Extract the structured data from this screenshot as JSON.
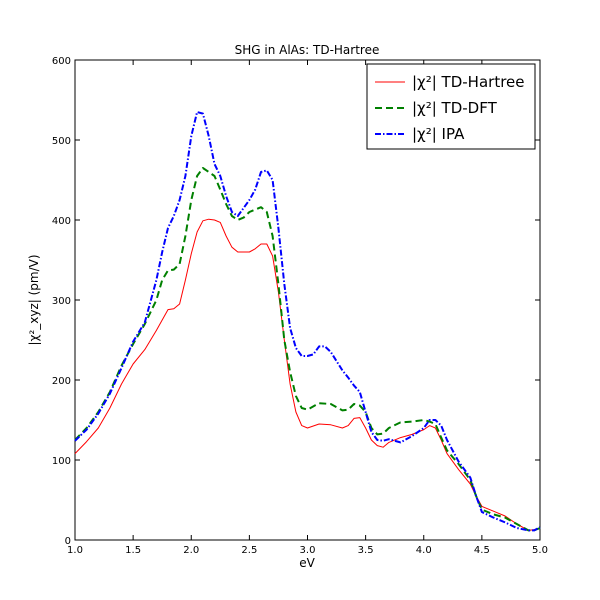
{
  "chart_data": {
    "type": "line",
    "title": "SHG in AlAs: TD-Hartree",
    "xlabel": "eV",
    "ylabel": "|χ²_xyz| (pm/V)",
    "xlim": [
      1.0,
      5.0
    ],
    "ylim": [
      0,
      600
    ],
    "x_ticks": [
      "1.0",
      "1.5",
      "2.0",
      "2.5",
      "3.0",
      "3.5",
      "4.0",
      "4.5",
      "5.0"
    ],
    "y_ticks": [
      "0",
      "100",
      "200",
      "300",
      "400",
      "500",
      "600"
    ],
    "grid": false,
    "legend_position": "top-right",
    "series": [
      {
        "name": "|χ²| TD-Hartree",
        "color": "#ff0000",
        "style": "solid",
        "points": [
          [
            1.0,
            108
          ],
          [
            1.1,
            123
          ],
          [
            1.2,
            140
          ],
          [
            1.3,
            165
          ],
          [
            1.4,
            195
          ],
          [
            1.5,
            220
          ],
          [
            1.6,
            238
          ],
          [
            1.7,
            262
          ],
          [
            1.8,
            288
          ],
          [
            1.85,
            289
          ],
          [
            1.9,
            295
          ],
          [
            1.95,
            325
          ],
          [
            2.0,
            358
          ],
          [
            2.05,
            385
          ],
          [
            2.1,
            399
          ],
          [
            2.15,
            401
          ],
          [
            2.2,
            400
          ],
          [
            2.25,
            397
          ],
          [
            2.3,
            380
          ],
          [
            2.35,
            366
          ],
          [
            2.4,
            360
          ],
          [
            2.5,
            360
          ],
          [
            2.55,
            364
          ],
          [
            2.6,
            370
          ],
          [
            2.65,
            370
          ],
          [
            2.7,
            355
          ],
          [
            2.75,
            310
          ],
          [
            2.8,
            250
          ],
          [
            2.85,
            195
          ],
          [
            2.9,
            160
          ],
          [
            2.95,
            143
          ],
          [
            3.0,
            140
          ],
          [
            3.1,
            145
          ],
          [
            3.2,
            144
          ],
          [
            3.3,
            140
          ],
          [
            3.35,
            143
          ],
          [
            3.4,
            152
          ],
          [
            3.45,
            153
          ],
          [
            3.5,
            140
          ],
          [
            3.55,
            125
          ],
          [
            3.6,
            118
          ],
          [
            3.65,
            116
          ],
          [
            3.7,
            122
          ],
          [
            3.8,
            128
          ],
          [
            3.9,
            132
          ],
          [
            4.0,
            138
          ],
          [
            4.05,
            143
          ],
          [
            4.1,
            140
          ],
          [
            4.15,
            125
          ],
          [
            4.2,
            108
          ],
          [
            4.3,
            88
          ],
          [
            4.4,
            70
          ],
          [
            4.45,
            55
          ],
          [
            4.5,
            42
          ],
          [
            4.6,
            36
          ],
          [
            4.7,
            30
          ],
          [
            4.8,
            20
          ],
          [
            4.9,
            12
          ],
          [
            4.95,
            13
          ],
          [
            5.0,
            15
          ]
        ]
      },
      {
        "name": "|χ²| TD-DFT",
        "color": "#008000",
        "style": "dashed",
        "points": [
          [
            1.0,
            125
          ],
          [
            1.1,
            140
          ],
          [
            1.2,
            160
          ],
          [
            1.3,
            185
          ],
          [
            1.4,
            218
          ],
          [
            1.5,
            245
          ],
          [
            1.6,
            270
          ],
          [
            1.7,
            300
          ],
          [
            1.75,
            325
          ],
          [
            1.8,
            337
          ],
          [
            1.85,
            338
          ],
          [
            1.9,
            345
          ],
          [
            1.95,
            380
          ],
          [
            2.0,
            425
          ],
          [
            2.05,
            455
          ],
          [
            2.1,
            465
          ],
          [
            2.15,
            460
          ],
          [
            2.2,
            455
          ],
          [
            2.25,
            438
          ],
          [
            2.3,
            420
          ],
          [
            2.35,
            405
          ],
          [
            2.4,
            400
          ],
          [
            2.45,
            403
          ],
          [
            2.5,
            410
          ],
          [
            2.55,
            413
          ],
          [
            2.6,
            416
          ],
          [
            2.65,
            410
          ],
          [
            2.7,
            380
          ],
          [
            2.75,
            320
          ],
          [
            2.8,
            250
          ],
          [
            2.85,
            210
          ],
          [
            2.9,
            180
          ],
          [
            2.95,
            165
          ],
          [
            3.0,
            163
          ],
          [
            3.1,
            171
          ],
          [
            3.2,
            170
          ],
          [
            3.3,
            162
          ],
          [
            3.35,
            163
          ],
          [
            3.4,
            170
          ],
          [
            3.45,
            168
          ],
          [
            3.5,
            160
          ],
          [
            3.55,
            140
          ],
          [
            3.6,
            132
          ],
          [
            3.65,
            133
          ],
          [
            3.7,
            140
          ],
          [
            3.8,
            147
          ],
          [
            3.9,
            148
          ],
          [
            4.0,
            150
          ],
          [
            4.05,
            148
          ],
          [
            4.1,
            145
          ],
          [
            4.15,
            128
          ],
          [
            4.2,
            112
          ],
          [
            4.3,
            95
          ],
          [
            4.4,
            75
          ],
          [
            4.45,
            55
          ],
          [
            4.5,
            38
          ],
          [
            4.6,
            32
          ],
          [
            4.7,
            28
          ],
          [
            4.8,
            20
          ],
          [
            4.9,
            12
          ],
          [
            4.95,
            12
          ],
          [
            5.0,
            15
          ]
        ]
      },
      {
        "name": "|χ²| IPA",
        "color": "#0000ff",
        "style": "dashdot",
        "points": [
          [
            1.0,
            124
          ],
          [
            1.1,
            138
          ],
          [
            1.2,
            158
          ],
          [
            1.3,
            183
          ],
          [
            1.4,
            215
          ],
          [
            1.5,
            248
          ],
          [
            1.6,
            272
          ],
          [
            1.7,
            325
          ],
          [
            1.75,
            360
          ],
          [
            1.8,
            390
          ],
          [
            1.85,
            405
          ],
          [
            1.9,
            425
          ],
          [
            1.95,
            455
          ],
          [
            2.0,
            505
          ],
          [
            2.05,
            535
          ],
          [
            2.1,
            533
          ],
          [
            2.15,
            505
          ],
          [
            2.2,
            470
          ],
          [
            2.25,
            455
          ],
          [
            2.3,
            430
          ],
          [
            2.35,
            410
          ],
          [
            2.4,
            405
          ],
          [
            2.45,
            415
          ],
          [
            2.5,
            425
          ],
          [
            2.55,
            438
          ],
          [
            2.6,
            460
          ],
          [
            2.65,
            462
          ],
          [
            2.7,
            450
          ],
          [
            2.75,
            390
          ],
          [
            2.8,
            320
          ],
          [
            2.85,
            265
          ],
          [
            2.9,
            240
          ],
          [
            2.95,
            230
          ],
          [
            3.0,
            230
          ],
          [
            3.05,
            232
          ],
          [
            3.1,
            242
          ],
          [
            3.15,
            242
          ],
          [
            3.2,
            235
          ],
          [
            3.3,
            212
          ],
          [
            3.35,
            203
          ],
          [
            3.4,
            193
          ],
          [
            3.45,
            185
          ],
          [
            3.5,
            160
          ],
          [
            3.55,
            135
          ],
          [
            3.6,
            125
          ],
          [
            3.65,
            124
          ],
          [
            3.7,
            126
          ],
          [
            3.8,
            122
          ],
          [
            3.9,
            130
          ],
          [
            4.0,
            140
          ],
          [
            4.05,
            150
          ],
          [
            4.1,
            150
          ],
          [
            4.15,
            143
          ],
          [
            4.2,
            125
          ],
          [
            4.3,
            98
          ],
          [
            4.4,
            78
          ],
          [
            4.45,
            55
          ],
          [
            4.5,
            35
          ],
          [
            4.6,
            28
          ],
          [
            4.7,
            22
          ],
          [
            4.8,
            15
          ],
          [
            4.9,
            12
          ],
          [
            4.95,
            12
          ],
          [
            5.0,
            16
          ]
        ]
      }
    ]
  }
}
